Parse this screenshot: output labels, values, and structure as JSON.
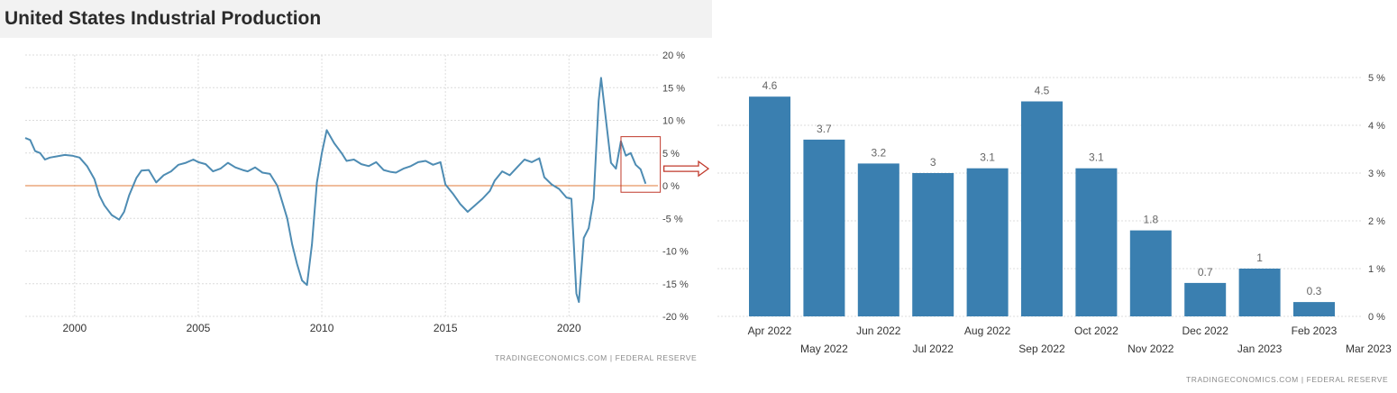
{
  "title": "United States Industrial Production",
  "left_source": "TRADINGECONOMICS.COM  |  FEDERAL RESERVE",
  "right_source": "TRADINGECONOMICS.COM  |  FEDERAL RESERVE",
  "colors": {
    "line": "#4e8cb3",
    "bar": "#3a7fb0",
    "zero_line": "#e07b39",
    "highlight_box": "#c0392b",
    "arrow": "#c0392b"
  },
  "chart_data": [
    {
      "type": "line",
      "title": "United States Industrial Production",
      "xlabel": "",
      "ylabel": "",
      "xlim": [
        1998.0,
        2023.6
      ],
      "ylim": [
        -20,
        20
      ],
      "x_ticks": [
        "2000",
        "2005",
        "2010",
        "2015",
        "2020"
      ],
      "y_ticks": [
        "20 %",
        "15 %",
        "10 %",
        "5 %",
        "0 %",
        "-5 %",
        "-10 %",
        "-15 %",
        "-20 %"
      ],
      "grid": true,
      "series": [
        {
          "x": [
            1998.0,
            1998.2,
            1998.4,
            1998.6,
            1998.8,
            1999.0,
            1999.3,
            1999.6,
            1999.9,
            2000.2,
            2000.5,
            2000.8,
            2001.0,
            2001.2,
            2001.5,
            2001.8,
            2002.0,
            2002.2,
            2002.5,
            2002.7,
            2003.0,
            2003.3,
            2003.6,
            2003.9,
            2004.2,
            2004.5,
            2004.8,
            2005.0,
            2005.3,
            2005.6,
            2005.9,
            2006.2,
            2006.5,
            2006.8,
            2007.0,
            2007.3,
            2007.6,
            2007.9,
            2008.2,
            2008.4,
            2008.6,
            2008.8,
            2009.0,
            2009.2,
            2009.4,
            2009.6,
            2009.8,
            2010.0,
            2010.2,
            2010.5,
            2010.8,
            2011.0,
            2011.3,
            2011.6,
            2011.9,
            2012.2,
            2012.5,
            2012.8,
            2013.0,
            2013.3,
            2013.6,
            2013.9,
            2014.2,
            2014.5,
            2014.8,
            2015.0,
            2015.3,
            2015.6,
            2015.9,
            2016.2,
            2016.5,
            2016.8,
            2017.0,
            2017.3,
            2017.6,
            2017.9,
            2018.2,
            2018.5,
            2018.8,
            2019.0,
            2019.3,
            2019.6,
            2019.9,
            2020.1,
            2020.3,
            2020.4,
            2020.6,
            2020.8,
            2021.0,
            2021.2,
            2021.3,
            2021.5,
            2021.7,
            2021.9,
            2022.1,
            2022.3,
            2022.5,
            2022.7,
            2022.9,
            2023.1
          ],
          "y": [
            7.3,
            7.0,
            5.3,
            5.0,
            4.0,
            4.3,
            4.5,
            4.7,
            4.6,
            4.3,
            3.0,
            1.0,
            -1.5,
            -3.0,
            -4.5,
            -5.2,
            -4.0,
            -1.5,
            1.2,
            2.3,
            2.4,
            0.5,
            1.6,
            2.2,
            3.2,
            3.5,
            4.0,
            3.6,
            3.3,
            2.2,
            2.6,
            3.5,
            2.8,
            2.4,
            2.2,
            2.8,
            2.0,
            1.8,
            0.0,
            -2.5,
            -5.0,
            -9.0,
            -12.0,
            -14.5,
            -15.2,
            -9.0,
            0.5,
            5.0,
            8.5,
            6.5,
            5.0,
            3.8,
            4.0,
            3.3,
            3.0,
            3.6,
            2.4,
            2.1,
            2.0,
            2.6,
            3.0,
            3.6,
            3.8,
            3.2,
            3.6,
            0.2,
            -1.2,
            -2.8,
            -4.0,
            -3.0,
            -2.0,
            -0.8,
            0.8,
            2.2,
            1.6,
            2.8,
            4.0,
            3.6,
            4.2,
            1.3,
            0.2,
            -0.5,
            -1.8,
            -2.0,
            -16.5,
            -17.8,
            -8.0,
            -6.5,
            -2.0,
            13.0,
            16.5,
            10.0,
            3.5,
            2.6,
            6.8,
            4.6,
            5.0,
            3.2,
            2.5,
            0.3
          ]
        }
      ],
      "zero_line": true,
      "annotation": "highlight box around the last 12 months (Apr 2022 - Mar 2023)"
    },
    {
      "type": "bar",
      "title": "",
      "xlabel": "",
      "ylabel": "",
      "ylim": [
        0,
        5
      ],
      "y_ticks": [
        "5 %",
        "4 %",
        "3 %",
        "2 %",
        "1 %",
        "0 %"
      ],
      "grid": true,
      "categories": [
        "Apr 2022",
        "May 2022",
        "Jun 2022",
        "Jul 2022",
        "Aug 2022",
        "Sep 2022",
        "Oct 2022",
        "Nov 2022",
        "Dec 2022",
        "Jan 2023",
        "Feb 2023",
        "Mar 2023"
      ],
      "values": [
        4.6,
        3.7,
        3.2,
        3,
        3.1,
        4.5,
        3.1,
        1.8,
        0.7,
        1,
        0.3,
        null
      ],
      "value_labels": [
        "4.6",
        "3.7",
        "3.2",
        "3",
        "3.1",
        "4.5",
        "3.1",
        "1.8",
        "0.7",
        "1",
        "0.3",
        ""
      ]
    }
  ]
}
